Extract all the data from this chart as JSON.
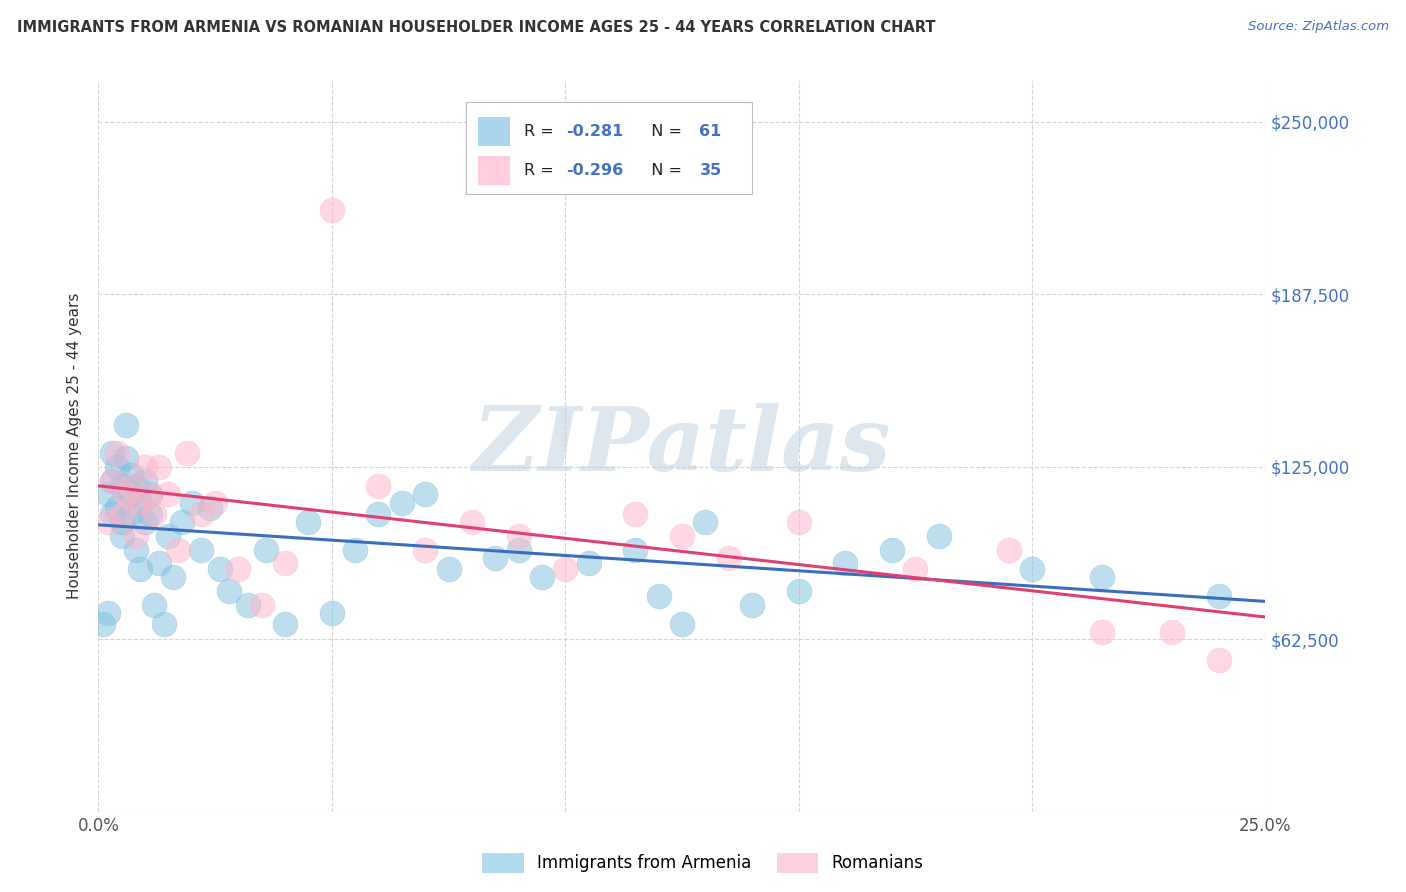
{
  "title": "IMMIGRANTS FROM ARMENIA VS ROMANIAN HOUSEHOLDER INCOME AGES 25 - 44 YEARS CORRELATION CHART",
  "source": "Source: ZipAtlas.com",
  "ylabel": "Householder Income Ages 25 - 44 years",
  "xlim": [
    0.0,
    0.25
  ],
  "ylim": [
    0,
    265000
  ],
  "yticks": [
    0,
    62500,
    125000,
    187500,
    250000
  ],
  "ytick_labels": [
    "",
    "$62,500",
    "$125,000",
    "$187,500",
    "$250,000"
  ],
  "xticks": [
    0.0,
    0.05,
    0.1,
    0.15,
    0.2,
    0.25
  ],
  "xtick_labels": [
    "0.0%",
    "",
    "",
    "",
    "",
    "25.0%"
  ],
  "r_armenia": -0.281,
  "n_armenia": 61,
  "r_romanian": -0.296,
  "n_romanian": 35,
  "color_armenia": "#7fbfdf",
  "color_romanian": "#ffb3c8",
  "line_color_armenia": "#3a6ebd",
  "line_color_romanian": "#e04070",
  "watermark": "ZIPatlas",
  "background_color": "#ffffff",
  "title_color": "#333333",
  "source_color": "#4472c4",
  "right_axis_color": "#4472c4",
  "grid_color": "#d0d0d0",
  "legend1_label": "Immigrants from Armenia",
  "legend2_label": "Romanians",
  "arm_x": [
    0.001,
    0.002,
    0.002,
    0.003,
    0.003,
    0.003,
    0.004,
    0.004,
    0.005,
    0.005,
    0.005,
    0.006,
    0.006,
    0.007,
    0.007,
    0.007,
    0.008,
    0.008,
    0.009,
    0.009,
    0.01,
    0.01,
    0.011,
    0.011,
    0.012,
    0.013,
    0.014,
    0.015,
    0.016,
    0.018,
    0.02,
    0.022,
    0.024,
    0.026,
    0.028,
    0.032,
    0.036,
    0.04,
    0.045,
    0.05,
    0.055,
    0.06,
    0.065,
    0.07,
    0.075,
    0.085,
    0.09,
    0.095,
    0.105,
    0.115,
    0.12,
    0.125,
    0.13,
    0.14,
    0.15,
    0.16,
    0.17,
    0.18,
    0.2,
    0.215,
    0.24
  ],
  "arm_y": [
    68000,
    72000,
    115000,
    108000,
    130000,
    120000,
    125000,
    110000,
    118000,
    100000,
    105000,
    140000,
    128000,
    115000,
    122000,
    108000,
    118000,
    95000,
    112000,
    88000,
    105000,
    120000,
    108000,
    115000,
    75000,
    90000,
    68000,
    100000,
    85000,
    105000,
    112000,
    95000,
    110000,
    88000,
    80000,
    75000,
    95000,
    68000,
    105000,
    72000,
    95000,
    108000,
    112000,
    115000,
    88000,
    92000,
    95000,
    85000,
    90000,
    95000,
    78000,
    68000,
    105000,
    75000,
    80000,
    90000,
    95000,
    100000,
    88000,
    85000,
    78000
  ],
  "rom_x": [
    0.002,
    0.003,
    0.004,
    0.005,
    0.006,
    0.007,
    0.008,
    0.009,
    0.01,
    0.011,
    0.012,
    0.013,
    0.015,
    0.017,
    0.019,
    0.022,
    0.025,
    0.03,
    0.035,
    0.04,
    0.05,
    0.06,
    0.07,
    0.08,
    0.09,
    0.1,
    0.115,
    0.125,
    0.135,
    0.15,
    0.175,
    0.195,
    0.215,
    0.23,
    0.24
  ],
  "rom_y": [
    105000,
    120000,
    130000,
    108000,
    115000,
    118000,
    100000,
    112000,
    125000,
    115000,
    108000,
    125000,
    115000,
    95000,
    130000,
    108000,
    112000,
    88000,
    75000,
    90000,
    218000,
    118000,
    95000,
    105000,
    100000,
    88000,
    108000,
    100000,
    92000,
    105000,
    88000,
    95000,
    65000,
    65000,
    55000
  ]
}
